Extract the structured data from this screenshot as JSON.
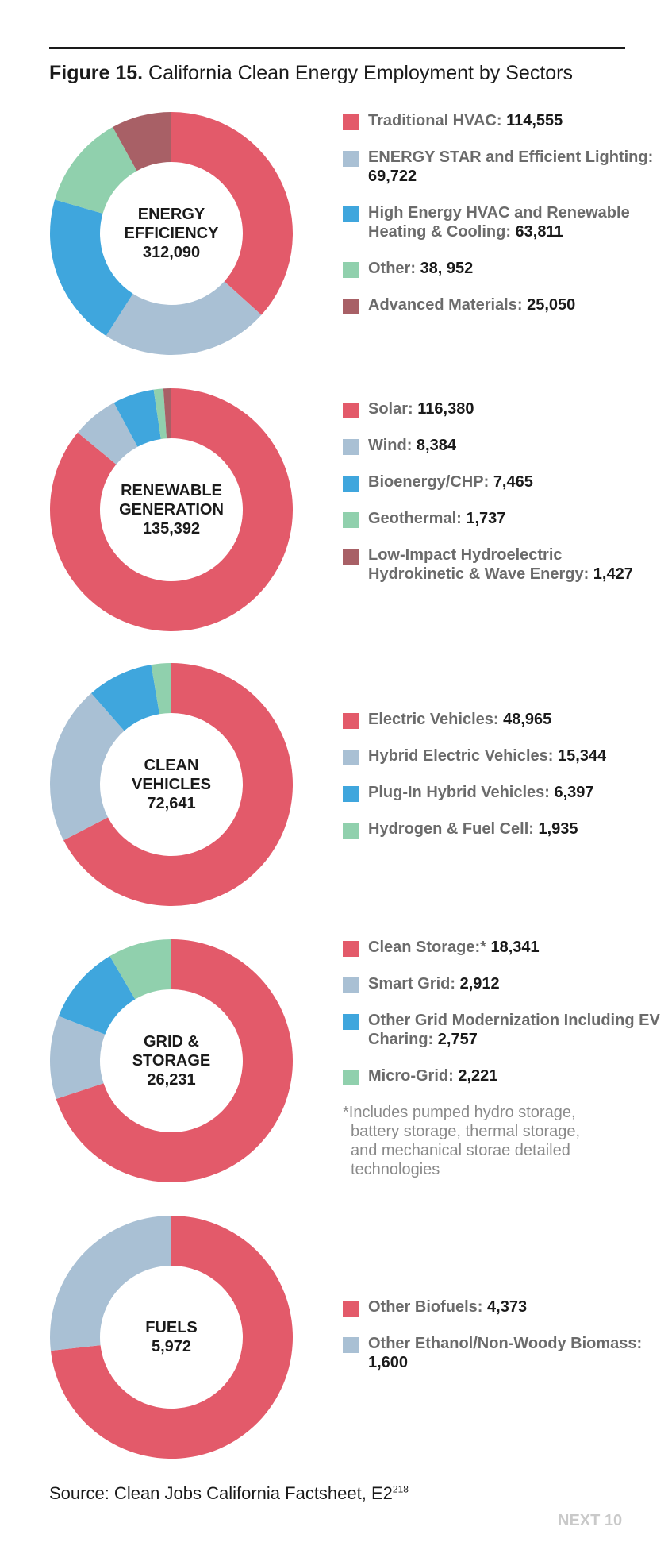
{
  "figure": {
    "title_prefix": "Figure 15.",
    "title_text": "California Clean Energy Employment by Sectors",
    "source_text": "Source: Clean Jobs California Factsheet, E2",
    "source_sup": "218",
    "brand": "NEXT 10"
  },
  "colors": [
    "#e35a6a",
    "#a9c0d4",
    "#3fa6dd",
    "#90d0ad",
    "#a86066"
  ],
  "chart_data": [
    {
      "type": "pie",
      "center_line1": "ENERGY",
      "center_line2": "EFFICIENCY",
      "total": "312,090",
      "slices": [
        {
          "label": "Traditional HVAC:",
          "value_text": "114,555",
          "value": 114555
        },
        {
          "label": "ENERGY STAR and Efficient Lighting:",
          "value_text": "69,722",
          "value": 69722
        },
        {
          "label": "High Energy HVAC and Renewable Heating & Cooling:",
          "value_text": "63,811",
          "value": 63811
        },
        {
          "label": "Other:",
          "value_text": "38, 952",
          "value": 38952
        },
        {
          "label": "Advanced Materials:",
          "value_text": "25,050",
          "value": 25050
        }
      ]
    },
    {
      "type": "pie",
      "center_line1": "RENEWABLE",
      "center_line2": "GENERATION",
      "total": "135,392",
      "slices": [
        {
          "label": "Solar:",
          "value_text": "116,380",
          "value": 116380
        },
        {
          "label": "Wind:",
          "value_text": "8,384",
          "value": 8384
        },
        {
          "label": "Bioenergy/CHP:",
          "value_text": "7,465",
          "value": 7465
        },
        {
          "label": "Geothermal:",
          "value_text": "1,737",
          "value": 1737
        },
        {
          "label": "Low-Impact Hydroelectric Hydrokinetic & Wave Energy:",
          "value_text": "1,427",
          "value": 1427
        }
      ]
    },
    {
      "type": "pie",
      "center_line1": "CLEAN",
      "center_line2": "VEHICLES",
      "total": "72,641",
      "slices": [
        {
          "label": "Electric Vehicles:",
          "value_text": "48,965",
          "value": 48965
        },
        {
          "label": "Hybrid Electric Vehicles:",
          "value_text": "15,344",
          "value": 15344
        },
        {
          "label": "Plug-In Hybrid Vehicles:",
          "value_text": "6,397",
          "value": 6397
        },
        {
          "label": "Hydrogen & Fuel Cell:",
          "value_text": "1,935",
          "value": 1935
        }
      ]
    },
    {
      "type": "pie",
      "center_line1": "GRID &",
      "center_line2": "STORAGE",
      "total": "26,231",
      "slices": [
        {
          "label": "Clean Storage:*",
          "value_text": "18,341",
          "value": 18341
        },
        {
          "label": "Smart Grid:",
          "value_text": "2,912",
          "value": 2912
        },
        {
          "label": "Other Grid Modernization Including EV Charing:",
          "value_text": "2,757",
          "value": 2757
        },
        {
          "label": "Micro-Grid:",
          "value_text": "2,221",
          "value": 2221
        }
      ],
      "note": [
        "*Includes pumped hydro storage,",
        "battery storage, thermal storage,",
        "and mechanical storae detailed",
        "technologies"
      ]
    },
    {
      "type": "pie",
      "center_line1": "FUELS",
      "center_line2": "",
      "total": "5,972",
      "slices": [
        {
          "label": "Other Biofuels:",
          "value_text": "4,373",
          "value": 4373
        },
        {
          "label": "Other Ethanol/Non-Woody Biomass:",
          "value_text": "1,600",
          "value": 1600
        }
      ]
    }
  ]
}
